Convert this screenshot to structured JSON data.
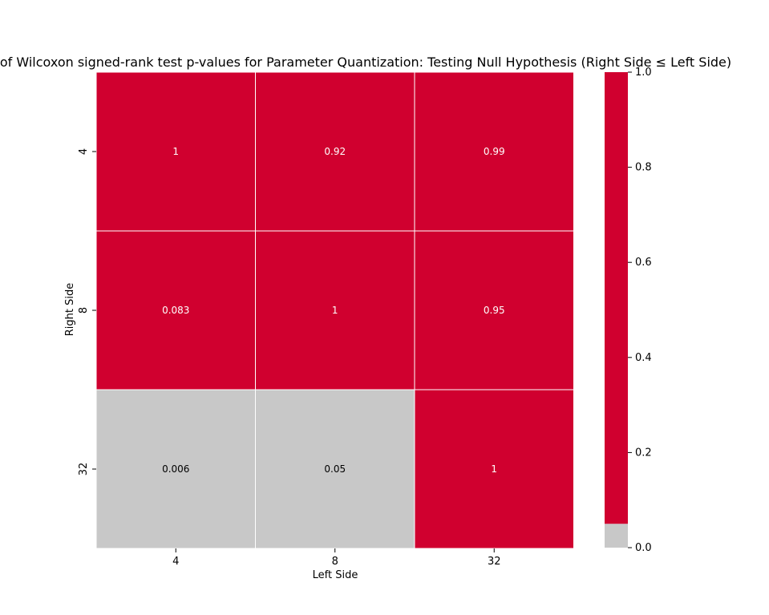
{
  "chart_data": {
    "type": "heatmap",
    "title": "of Wilcoxon signed-rank test p-values for Parameter Quantization: Testing Null Hypothesis (Right Side ≤ Left Side)",
    "xlabel": "Left Side",
    "ylabel": "Right Side",
    "x_categories": [
      "4",
      "8",
      "32"
    ],
    "y_categories": [
      "4",
      "8",
      "32"
    ],
    "values": [
      [
        1,
        0.92,
        0.99
      ],
      [
        0.083,
        1,
        0.95
      ],
      [
        0.006,
        0.05,
        1
      ]
    ],
    "cell_labels": [
      [
        "1",
        "0.92",
        "0.99"
      ],
      [
        "0.083",
        "1",
        "0.95"
      ],
      [
        "0.006",
        "0.05",
        "1"
      ]
    ],
    "threshold": 0.05,
    "colors": {
      "significant": "#c8c8c8",
      "not_significant": "#d0002f",
      "label_on_red": "#ffffff",
      "label_on_gray": "#000000"
    },
    "colorbar": {
      "range": [
        0,
        1
      ],
      "ticks": [
        "0.0",
        "0.2",
        "0.4",
        "0.6",
        "0.8",
        "1.0"
      ],
      "tick_values": [
        0,
        0.2,
        0.4,
        0.6,
        0.8,
        1.0
      ]
    },
    "grid": true,
    "legend": "colorbar right"
  }
}
